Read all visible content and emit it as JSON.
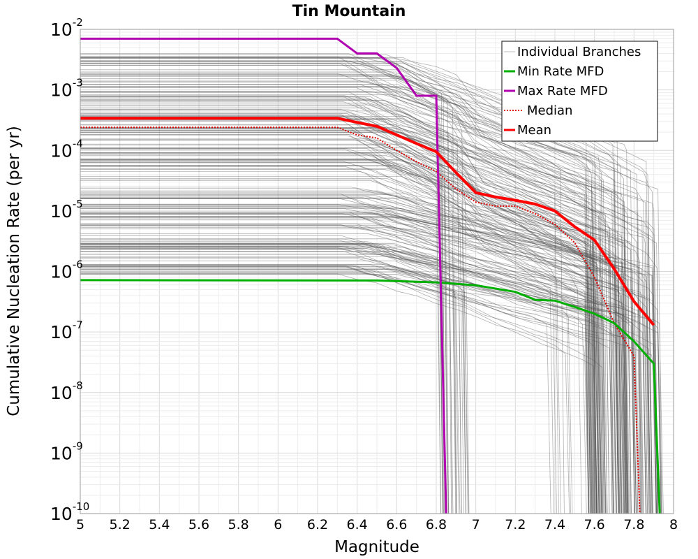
{
  "chart_data": {
    "type": "line",
    "title": "Tin Mountain",
    "xlabel": "Magnitude",
    "ylabel": "Cumulative Nucleation Rate (per yr)",
    "xlim": [
      5,
      8
    ],
    "ylim": [
      1e-10,
      0.01
    ],
    "yscale": "log",
    "grid": true,
    "legend_position": "top-right",
    "x_ticks": [
      "5",
      "5.2",
      "5.4",
      "5.6",
      "5.8",
      "6",
      "6.2",
      "6.4",
      "6.6",
      "6.8",
      "7",
      "7.2",
      "7.4",
      "7.6",
      "7.8",
      "8"
    ],
    "y_ticks": [
      {
        "base": "10",
        "exp": "-10"
      },
      {
        "base": "10",
        "exp": "-9"
      },
      {
        "base": "10",
        "exp": "-8"
      },
      {
        "base": "10",
        "exp": "-7"
      },
      {
        "base": "10",
        "exp": "-6"
      },
      {
        "base": "10",
        "exp": "-5"
      },
      {
        "base": "10",
        "exp": "-4"
      },
      {
        "base": "10",
        "exp": "-3"
      },
      {
        "base": "10",
        "exp": "-2"
      }
    ],
    "series": [
      {
        "name": "Individual Branches",
        "color": "#555555",
        "description_of_rendering": "many thin gray lines"
      },
      {
        "name": "Min Rate MFD",
        "color": "#00b000",
        "style": "solid",
        "x": [
          5.0,
          6.5,
          6.8,
          7.0,
          7.2,
          7.3,
          7.4,
          7.5,
          7.6,
          7.7,
          7.8,
          7.9,
          7.93
        ],
        "y": [
          7.2e-07,
          7.1e-07,
          6.6e-07,
          5.9e-07,
          4.6e-07,
          3.4e-07,
          3.3e-07,
          2.6e-07,
          2e-07,
          1.4e-07,
          7e-08,
          3e-08,
          1e-10
        ]
      },
      {
        "name": "Max Rate MFD",
        "color": "#b000b0",
        "style": "solid",
        "x": [
          5.0,
          6.3,
          6.4,
          6.5,
          6.6,
          6.7,
          6.8,
          6.85
        ],
        "y": [
          0.007,
          0.007,
          0.004,
          0.004,
          0.0023,
          0.0008,
          0.0008,
          1e-10
        ]
      },
      {
        "name": "Median",
        "color": "#e00000",
        "style": "dotted",
        "x": [
          5.0,
          6.3,
          6.4,
          6.5,
          6.6,
          6.7,
          6.8,
          6.9,
          7.0,
          7.1,
          7.2,
          7.3,
          7.4,
          7.5,
          7.6,
          7.7,
          7.8,
          7.83
        ],
        "y": [
          0.00024,
          0.00024,
          0.00018,
          0.00016,
          0.0001,
          6.5e-05,
          4.5e-05,
          2.3e-05,
          1.4e-05,
          1.2e-05,
          1.2e-05,
          9e-06,
          6e-06,
          3e-06,
          8e-07,
          1.4e-07,
          4e-08,
          1e-10
        ]
      },
      {
        "name": "Mean",
        "color": "#ff0000",
        "style": "solid",
        "x": [
          5.0,
          6.3,
          6.4,
          6.5,
          6.6,
          6.7,
          6.8,
          6.9,
          7.0,
          7.1,
          7.2,
          7.3,
          7.4,
          7.5,
          7.6,
          7.7,
          7.8,
          7.9
        ],
        "y": [
          0.00034,
          0.00034,
          0.00029,
          0.00025,
          0.00018,
          0.00013,
          9.5e-05,
          4.3e-05,
          2e-05,
          1.7e-05,
          1.5e-05,
          1.3e-05,
          1e-05,
          5.5e-06,
          3.3e-06,
          1.1e-06,
          3.2e-07,
          1.3e-07
        ]
      }
    ]
  }
}
